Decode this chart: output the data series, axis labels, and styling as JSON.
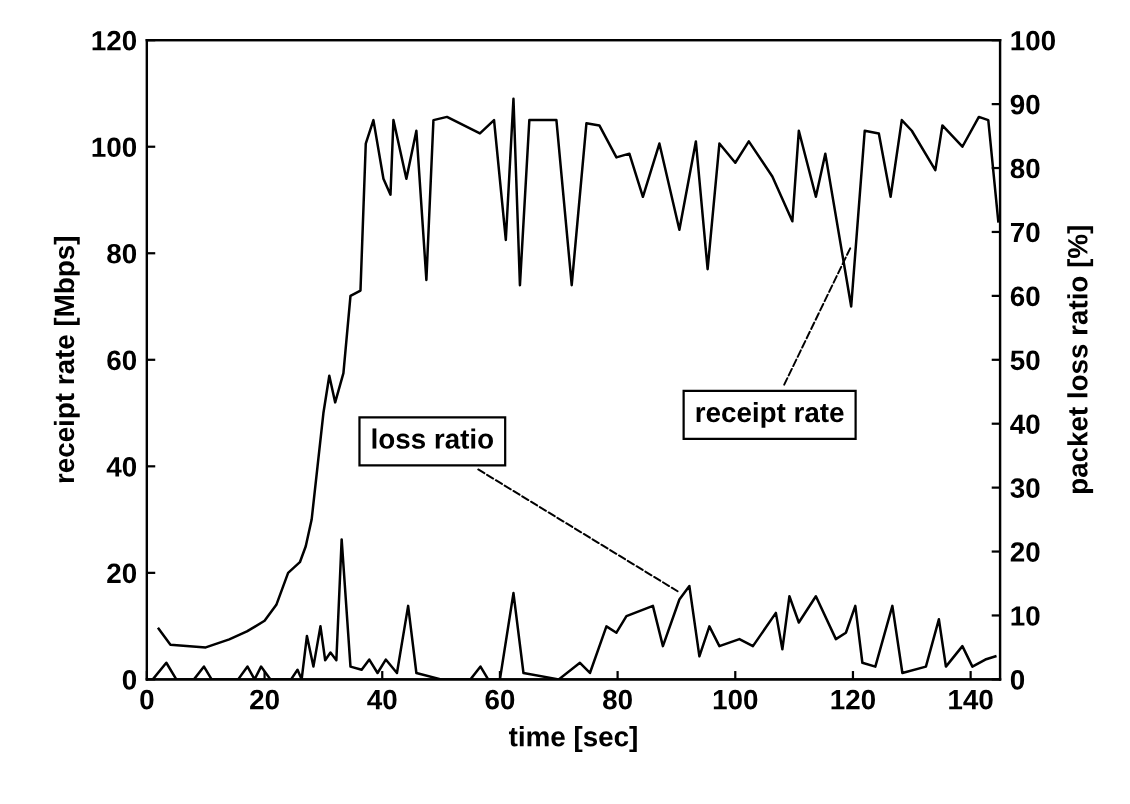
{
  "chart_data": {
    "type": "line",
    "xlabel": "time [sec]",
    "ylabel": "receipt rate [Mbps]",
    "y2label": "packet loss ratio [%]",
    "xlim": [
      0,
      145
    ],
    "xticks": [
      0,
      20,
      40,
      60,
      80,
      100,
      120,
      140
    ],
    "ylim": [
      0,
      120
    ],
    "yticks": [
      0,
      20,
      40,
      60,
      80,
      100,
      120
    ],
    "y2lim": [
      0,
      100
    ],
    "y2ticks": [
      0,
      10,
      20,
      30,
      40,
      50,
      60,
      70,
      80,
      90,
      100
    ],
    "marker": "none",
    "annotations": [
      {
        "text": "receipt rate",
        "x": 120,
        "y": 82
      },
      {
        "text": "loss ratio",
        "x": 91,
        "y": 16
      }
    ],
    "series": [
      {
        "color": "#000000",
        "x": [
          2,
          4,
          10,
          14,
          17,
          20,
          22,
          24,
          26,
          27,
          28,
          29,
          30,
          31,
          32,
          33.4,
          34.6,
          36.3,
          37.2,
          38.5,
          40.2,
          41.4,
          41.9,
          44.1,
          45.8,
          47.5,
          48.7,
          51,
          56.6,
          59,
          61,
          62.3,
          63.4,
          65,
          69.6,
          72.2,
          74.7,
          76.9,
          79.8,
          82,
          84.3,
          87.1,
          90.5,
          93.3,
          95.3,
          97.3,
          100,
          102.3,
          106.3,
          109.7,
          110.8,
          113.7,
          115.3,
          119.7,
          122,
          124.4,
          126.4,
          128.3,
          130,
          134,
          135.2,
          138.6,
          141.4,
          143,
          144.7
        ],
        "values": [
          9.5,
          6.5,
          6,
          7.5,
          9,
          11,
          14,
          20,
          22,
          25,
          30,
          40,
          50,
          57,
          52,
          57.5,
          72,
          73,
          100.6,
          105,
          94,
          91,
          105,
          94,
          103,
          75,
          105,
          105.6,
          102.5,
          105,
          82.5,
          109,
          74,
          105,
          105,
          74,
          104.4,
          104,
          98,
          98.7,
          90.6,
          100.6,
          84.4,
          101,
          77,
          100.6,
          97,
          101,
          94.4,
          86,
          103,
          90.6,
          98.7,
          70,
          103,
          102.5,
          90.6,
          105,
          103,
          95.6,
          104,
          100,
          105.6,
          105,
          86
        ]
      },
      {
        "color": "#000000",
        "axis": "y2",
        "x": [
          1,
          3.3,
          5,
          8,
          9.7,
          11,
          15.5,
          17.1,
          18.3,
          19.4,
          21,
          24.5,
          25.6,
          26.3,
          27.2,
          28.3,
          29.5,
          30.3,
          31.2,
          32.2,
          33.1,
          34.6,
          36.5,
          37.8,
          39.2,
          40.6,
          42.5,
          44.4,
          45.8,
          50,
          55,
          56.7,
          58,
          60,
          62.3,
          64,
          70,
          73.6,
          75.3,
          78.1,
          79.8,
          81.5,
          86,
          87.7,
          90.5,
          92.2,
          93.9,
          95.6,
          97.3,
          100.7,
          103,
          106.9,
          108,
          109.2,
          110.8,
          113.7,
          117.1,
          118.8,
          120.4,
          121.6,
          123.8,
          126.7,
          128.4,
          132.4,
          134.6,
          135.8,
          138.6,
          140.3,
          142.5,
          144.2
        ],
        "values": [
          0,
          2.6,
          0,
          0,
          2,
          0,
          0,
          2,
          0,
          2,
          0,
          0,
          1.5,
          0,
          6.8,
          2,
          8.3,
          3,
          4.2,
          3,
          21.9,
          2,
          1.5,
          3.1,
          1,
          3.1,
          1,
          11.5,
          1,
          0,
          0,
          2,
          0,
          0,
          13.5,
          1,
          0,
          2.6,
          1,
          8.3,
          7.3,
          9.9,
          11.5,
          5.2,
          12.5,
          14.6,
          3.6,
          8.3,
          5.2,
          6.3,
          5.2,
          10.4,
          4.7,
          13,
          8.9,
          13,
          6.3,
          7.3,
          11.5,
          2.6,
          2,
          11.5,
          1,
          2,
          9.4,
          2,
          5.2,
          2,
          3.1,
          3.6
        ]
      }
    ]
  }
}
